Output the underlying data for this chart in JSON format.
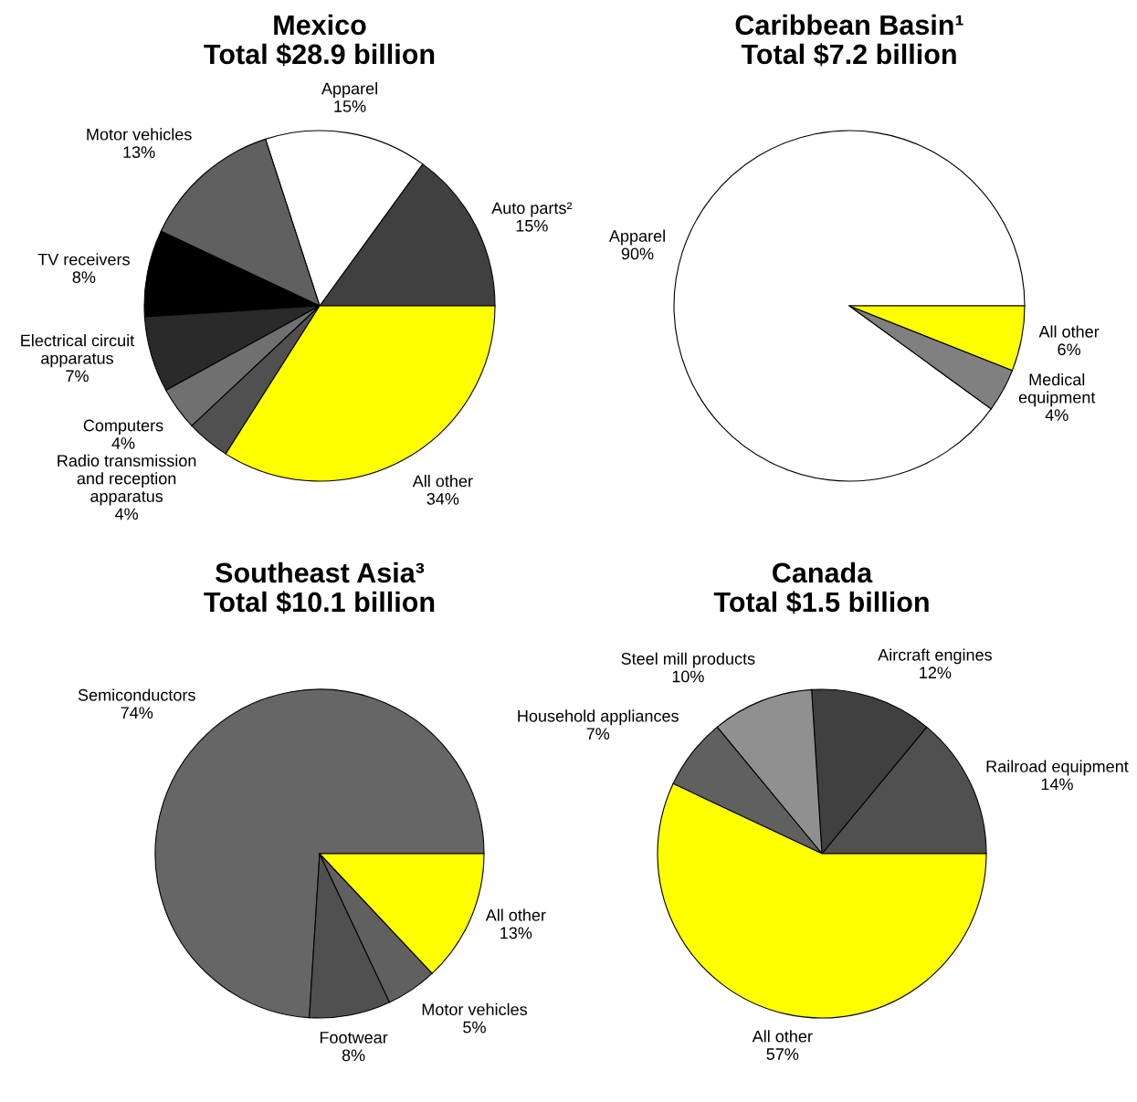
{
  "chart_data": [
    {
      "type": "pie",
      "title": "Mexico",
      "subtitle": "Total $28.9 billion",
      "categories": [
        "Auto parts²",
        "Apparel",
        "Motor vehicles",
        "TV receivers",
        "Electrical circuit\napparatus",
        "Computers",
        "Radio transmission\nand reception\napparatus",
        "All other"
      ],
      "values": [
        15,
        15,
        13,
        8,
        7,
        4,
        4,
        34
      ],
      "value_labels": [
        "15%",
        "15%",
        "13%",
        "8%",
        "7%",
        "4%",
        "4%",
        "34%"
      ],
      "colors": [
        "#404040",
        "#ffffff",
        "#606060",
        "#000000",
        "#2a2a2a",
        "#707070",
        "#505050",
        "#ffff00"
      ]
    },
    {
      "type": "pie",
      "title": "Caribbean Basin¹",
      "subtitle": "Total $7.2 billion",
      "categories": [
        "Apparel",
        "Medical\nequipment",
        "All other"
      ],
      "values": [
        90,
        4,
        6
      ],
      "value_labels": [
        "90%",
        "4%",
        "6%"
      ],
      "colors": [
        "#ffffff",
        "#808080",
        "#ffff00"
      ]
    },
    {
      "type": "pie",
      "title": "Southeast Asia³",
      "subtitle": "Total $10.1 billion",
      "categories": [
        "Semiconductors",
        "Footwear",
        "Motor vehicles",
        "All other"
      ],
      "values": [
        74,
        8,
        5,
        13
      ],
      "value_labels": [
        "74%",
        "8%",
        "5%",
        "13%"
      ],
      "colors": [
        "#666666",
        "#505050",
        "#606060",
        "#ffff00"
      ]
    },
    {
      "type": "pie",
      "title": "Canada",
      "subtitle": "Total $1.5 billion",
      "categories": [
        "Railroad equipment",
        "Aircraft engines",
        "Steel mill products",
        "Household appliances",
        "All other"
      ],
      "values": [
        14,
        12,
        10,
        7,
        57
      ],
      "value_labels": [
        "14%",
        "12%",
        "10%",
        "7%",
        "57%"
      ],
      "colors": [
        "#505050",
        "#404040",
        "#909090",
        "#606060",
        "#ffff00"
      ]
    }
  ]
}
